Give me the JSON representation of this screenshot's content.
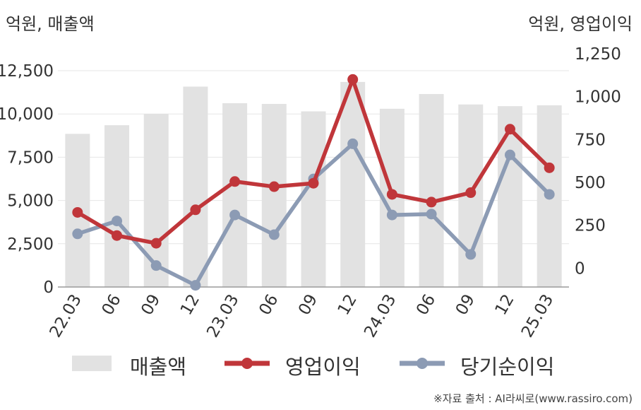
{
  "units": {
    "left": "억원, 매출액",
    "right": "억원, 영업이익"
  },
  "source": "※자료 출처 : AI라씨로(www.rassiro.com)",
  "colors": {
    "bar": "#e2e2e2",
    "operating": "#c0363a",
    "net": "#8c9bb4",
    "grid": "#e6e6e6",
    "axis": "#9a9a9a"
  },
  "chart_data": {
    "type": "bar+line",
    "categories": [
      "22.03",
      "06",
      "09",
      "12",
      "23.03",
      "06",
      "09",
      "12",
      "24.03",
      "06",
      "09",
      "12",
      "25.03"
    ],
    "y_left": {
      "ticks": [
        "0",
        "2,500",
        "5,000",
        "7,500",
        "10,000",
        "12,500"
      ],
      "range": [
        0,
        12500
      ]
    },
    "y_right": {
      "ticks": [
        "0",
        "250",
        "500",
        "750",
        "1,000",
        "1,250"
      ],
      "range": [
        -110,
        1250
      ]
    },
    "grid": true,
    "legend_position": "bottom",
    "series": [
      {
        "name": "매출액",
        "type": "bar",
        "axis": "left",
        "values": [
          8850,
          9350,
          10000,
          11580,
          10620,
          10580,
          10150,
          11850,
          10300,
          11150,
          10550,
          10450,
          10500
        ]
      },
      {
        "name": "영업이익",
        "type": "line",
        "axis": "right",
        "values": [
          325,
          190,
          145,
          340,
          505,
          475,
          495,
          1100,
          430,
          385,
          440,
          810,
          585
        ]
      },
      {
        "name": "당기순이익",
        "type": "line",
        "axis": "right",
        "values": [
          200,
          275,
          15,
          -100,
          310,
          195,
          520,
          725,
          310,
          315,
          80,
          660,
          430
        ]
      }
    ]
  }
}
